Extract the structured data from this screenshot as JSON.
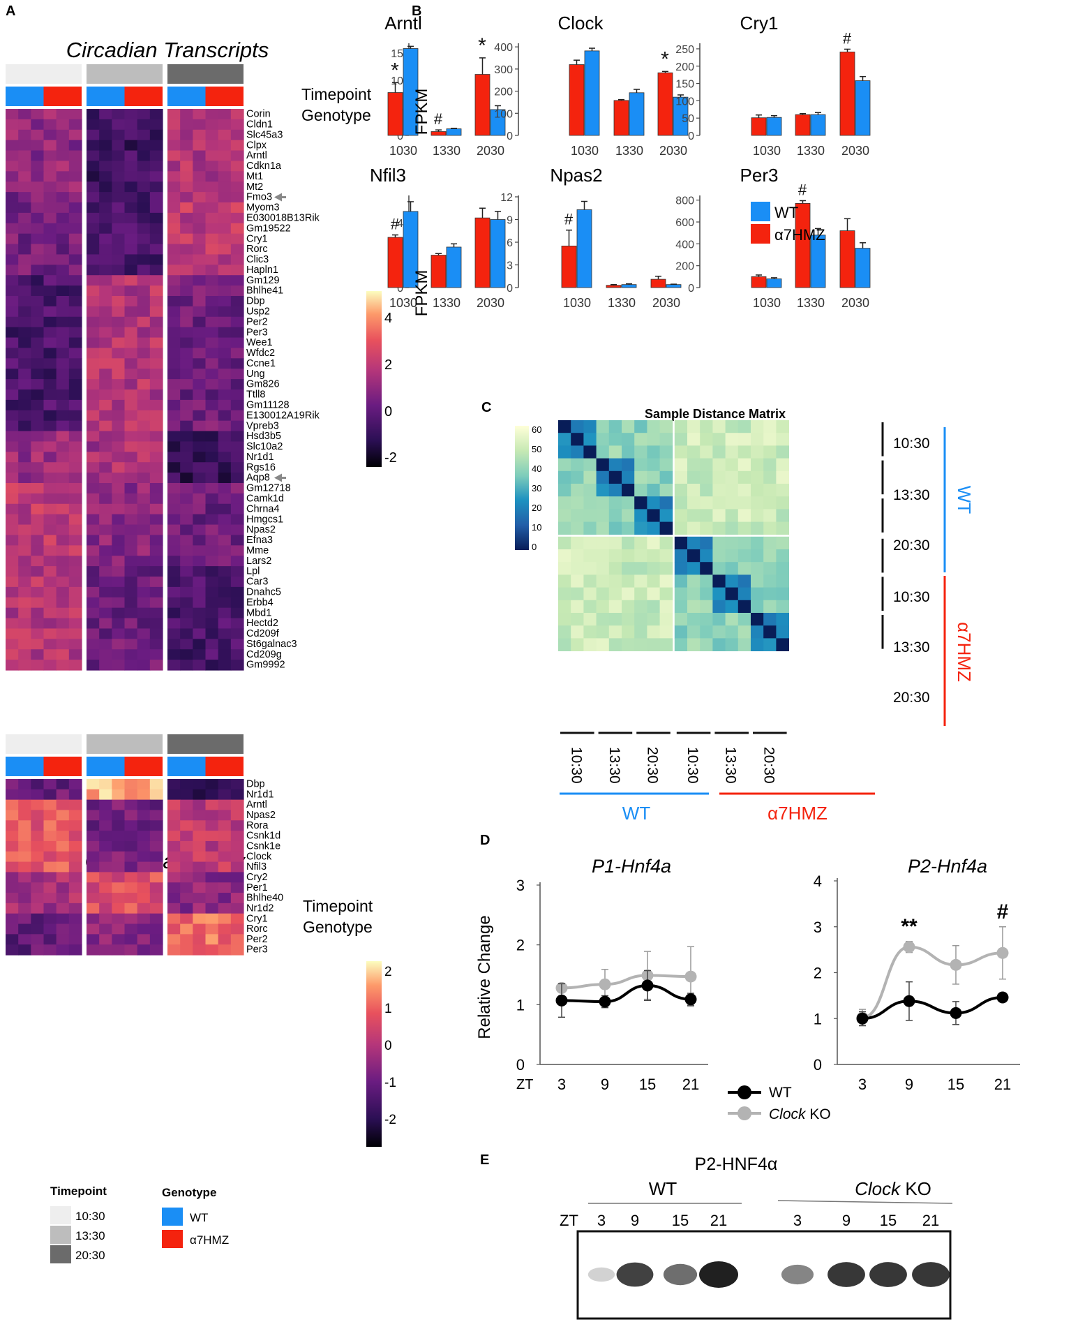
{
  "panel_labels": {
    "a": "A",
    "b": "B",
    "c": "C",
    "d": "D",
    "e": "E"
  },
  "heatmap_top": {
    "title": "Circadian Transcripts",
    "row_label_timepoint": "Timepoint",
    "row_label_genotype": "Genotype",
    "scale_ticks": [
      "4",
      "2",
      "0",
      "-2"
    ],
    "genes": [
      "Corin",
      "Cldn1",
      "Slc45a3",
      "Clpx",
      "Arntl",
      "Cdkn1a",
      "Mt1",
      "Mt2",
      "Fmo3",
      "Myom3",
      "E030018B13Rik",
      "Gm19522",
      "Cry1",
      "Rorc",
      "Clic3",
      "Hapln1",
      "Gm129",
      "Bhlhe41",
      "Dbp",
      "Usp2",
      "Per2",
      "Per3",
      "Wee1",
      "Wfdc2",
      "Ccne1",
      "Ung",
      "Gm826",
      "Ttll8",
      "Gm11128",
      "E130012A19Rik",
      "Vpreb3",
      "Hsd3b5",
      "Slc10a2",
      "Nr1d1",
      "Rgs16",
      "Aqp8",
      "Gm12718",
      "Camk1d",
      "Chrna4",
      "Hmgcs1",
      "Npas2",
      "Efna3",
      "Mme",
      "Lars2",
      "Lpl",
      "Car3",
      "Dnahc5",
      "Erbb4",
      "Mbd1",
      "Hectd2",
      "Cd209f",
      "St6galnac3",
      "Cd209g",
      "Gm9992"
    ],
    "arrow_genes": [
      "Fmo3",
      "Aqp8"
    ]
  },
  "heatmap_bottom": {
    "title": "Clock Machinery",
    "row_label_timepoint": "Timepoint",
    "row_label_genotype": "Genotype",
    "scale_ticks": [
      "2",
      "1",
      "0",
      "-1",
      "-2"
    ],
    "genes": [
      "Dbp",
      "Nr1d1",
      "Arntl",
      "Npas2",
      "Rora",
      "Csnk1d",
      "Csnk1e",
      "Clock",
      "Nfil3",
      "Cry2",
      "Per1",
      "Bhlhe40",
      "Nr1d2",
      "Cry1",
      "Rorc",
      "Per2",
      "Per3"
    ]
  },
  "legend_a": {
    "timepoint_title": "Timepoint",
    "timepoints": [
      "10:30",
      "13:30",
      "20:30"
    ],
    "genotype_title": "Genotype",
    "genotypes": [
      "WT",
      "α7HMZ"
    ]
  },
  "colors": {
    "wt": "#1a8ef5",
    "mut": "#f4230e",
    "tp1": "#eeeeee",
    "tp2": "#bdbdbd",
    "tp3": "#6b6b6b",
    "ko": "#b3b3b3"
  },
  "panel_b": {
    "ylabel": "FPKM",
    "legend": [
      "WT",
      "α7HMZ"
    ],
    "stars": {
      "star": "*",
      "hash": "#"
    }
  },
  "chart_data": [
    {
      "type": "bar",
      "title": "Arntl",
      "categories": [
        "1030",
        "1330",
        "2030"
      ],
      "ylabel": "FPKM",
      "ylim": [
        0,
        16.5
      ],
      "yticks": [
        0,
        5,
        10,
        15
      ],
      "series": [
        {
          "name": "α7HMZ",
          "values": [
            7.8,
            0.7,
            11.1
          ],
          "errors": [
            1.8,
            0.3,
            3.0
          ]
        },
        {
          "name": "WT",
          "values": [
            15.8,
            1.2,
            4.7
          ],
          "errors": [
            0.4,
            0.1,
            0.7
          ]
        }
      ],
      "annotations": [
        "*",
        "#",
        "*"
      ]
    },
    {
      "type": "bar",
      "title": "Clock",
      "categories": [
        "1030",
        "1330",
        "2030"
      ],
      "ylim": [
        0,
        410
      ],
      "yticks": [
        0,
        100,
        200,
        300,
        400
      ],
      "series": [
        {
          "name": "α7HMZ",
          "values": [
            320,
            158,
            283
          ],
          "errors": [
            20,
            4,
            6
          ]
        },
        {
          "name": "WT",
          "values": [
            382,
            193,
            173
          ],
          "errors": [
            12,
            15,
            10
          ]
        }
      ],
      "annotations": [
        "",
        "",
        "*"
      ]
    },
    {
      "type": "bar",
      "title": "Cry1",
      "categories": [
        "1030",
        "1330",
        "2030"
      ],
      "ylim": [
        0,
        262
      ],
      "yticks": [
        0,
        50,
        100,
        150,
        200,
        250
      ],
      "series": [
        {
          "name": "α7HMZ",
          "values": [
            51,
            60,
            241
          ],
          "errors": [
            8,
            3,
            8
          ]
        },
        {
          "name": "WT",
          "values": [
            52,
            60,
            158
          ],
          "errors": [
            5,
            6,
            12
          ]
        }
      ],
      "annotations": [
        "",
        "",
        "#"
      ]
    },
    {
      "type": "bar",
      "title": "Nfil3",
      "categories": [
        "1030",
        "1330",
        "2030"
      ],
      "ylabel": "FPKM",
      "ylim": [
        0,
        5.6
      ],
      "yticks": [
        0,
        2,
        4
      ],
      "series": [
        {
          "name": "α7HMZ",
          "values": [
            3.1,
            2.0,
            4.3
          ],
          "errors": [
            0.15,
            0.1,
            0.6
          ]
        },
        {
          "name": "WT",
          "values": [
            4.7,
            2.5,
            4.2
          ],
          "errors": [
            0.6,
            0.2,
            0.5
          ]
        }
      ],
      "annotations": [
        "#",
        "",
        ""
      ]
    },
    {
      "type": "bar",
      "title": "Npas2",
      "categories": [
        "1030",
        "1330",
        "2030"
      ],
      "ylim": [
        0,
        12
      ],
      "yticks": [
        0,
        3,
        6,
        9,
        12
      ],
      "series": [
        {
          "name": "α7HMZ",
          "values": [
            5.5,
            0.3,
            1.1
          ],
          "errors": [
            2.1,
            0.1,
            0.4
          ]
        },
        {
          "name": "WT",
          "values": [
            10.3,
            0.4,
            0.4
          ],
          "errors": [
            1.1,
            0.1,
            0.05
          ]
        }
      ],
      "annotations": [
        "#",
        "",
        ""
      ]
    },
    {
      "type": "bar",
      "title": "Per3",
      "categories": [
        "1030",
        "1330",
        "2030"
      ],
      "ylim": [
        0,
        830
      ],
      "yticks": [
        0,
        200,
        400,
        600,
        800
      ],
      "series": [
        {
          "name": "α7HMZ",
          "values": [
            100,
            770,
            520
          ],
          "errors": [
            15,
            25,
            110
          ]
        },
        {
          "name": "WT",
          "values": [
            80,
            480,
            360
          ],
          "errors": [
            10,
            60,
            50
          ]
        }
      ],
      "annotations": [
        "",
        "#",
        ""
      ]
    },
    {
      "type": "heatmap",
      "title": "Sample Distance Matrix",
      "samples": [
        "WT 10:30",
        "WT 10:30",
        "WT 10:30",
        "WT 13:30",
        "WT 13:30",
        "WT 13:30",
        "WT 20:30",
        "WT 20:30",
        "WT 20:30",
        "α7HMZ 10:30",
        "α7HMZ 10:30",
        "α7HMZ 10:30",
        "α7HMZ 13:30",
        "α7HMZ 13:30",
        "α7HMZ 13:30",
        "α7HMZ 20:30",
        "α7HMZ 20:30",
        "α7HMZ 20:30"
      ],
      "row_groups": [
        "10:30",
        "13:30",
        "20:30",
        "10:30",
        "13:30",
        "20:30"
      ],
      "col_groups": [
        "10:30",
        "13:30",
        "20:30",
        "10:30",
        "13:30",
        "20:30"
      ],
      "genotype_labels": [
        "WT",
        "α7HMZ"
      ],
      "colorbar_ticks": [
        60,
        50,
        40,
        30,
        20,
        10,
        0
      ]
    },
    {
      "type": "line",
      "title": "P1-Hnf4a",
      "x": [
        3,
        9,
        15,
        21
      ],
      "xlabel": "ZT",
      "ylabel": "Relative  Change",
      "ylim": [
        0,
        3
      ],
      "yticks": [
        0,
        1,
        2,
        3
      ],
      "series": [
        {
          "name": "WT",
          "values": [
            1.07,
            1.05,
            1.32,
            1.09
          ],
          "errors": [
            0.28,
            0.1,
            0.25,
            0.1
          ]
        },
        {
          "name": "Clock KO",
          "values": [
            1.28,
            1.34,
            1.49,
            1.47
          ],
          "errors": [
            0.05,
            0.25,
            0.4,
            0.5
          ]
        }
      ]
    },
    {
      "type": "line",
      "title": "P2-Hnf4a",
      "x": [
        3,
        9,
        15,
        21
      ],
      "xlabel": "ZT",
      "ylim": [
        0,
        4
      ],
      "yticks": [
        0,
        1,
        2,
        3,
        4
      ],
      "series": [
        {
          "name": "WT",
          "values": [
            1.0,
            1.38,
            1.12,
            1.46
          ],
          "errors": [
            0.15,
            0.42,
            0.25,
            0.05
          ]
        },
        {
          "name": "Clock KO",
          "values": [
            1.02,
            2.56,
            2.17,
            2.43
          ],
          "errors": [
            0.18,
            0.12,
            0.42,
            0.57
          ]
        }
      ],
      "annotations": [
        "",
        "**",
        "",
        "#"
      ]
    }
  ],
  "panel_d_legend": {
    "wt": "WT",
    "ko_italic": "Clock",
    "ko_rest": " KO"
  },
  "panel_e": {
    "title": "P2-HNF4α",
    "wt_label": "WT",
    "ko_italic": "Clock",
    "ko_rest": " KO",
    "zt_label": "ZT",
    "lanes": [
      "3",
      "9",
      "15",
      "21",
      "3",
      "9",
      "15",
      "21"
    ],
    "band_intensity": [
      0.2,
      0.85,
      0.65,
      1.0,
      0.55,
      0.9,
      0.9,
      0.9
    ]
  }
}
